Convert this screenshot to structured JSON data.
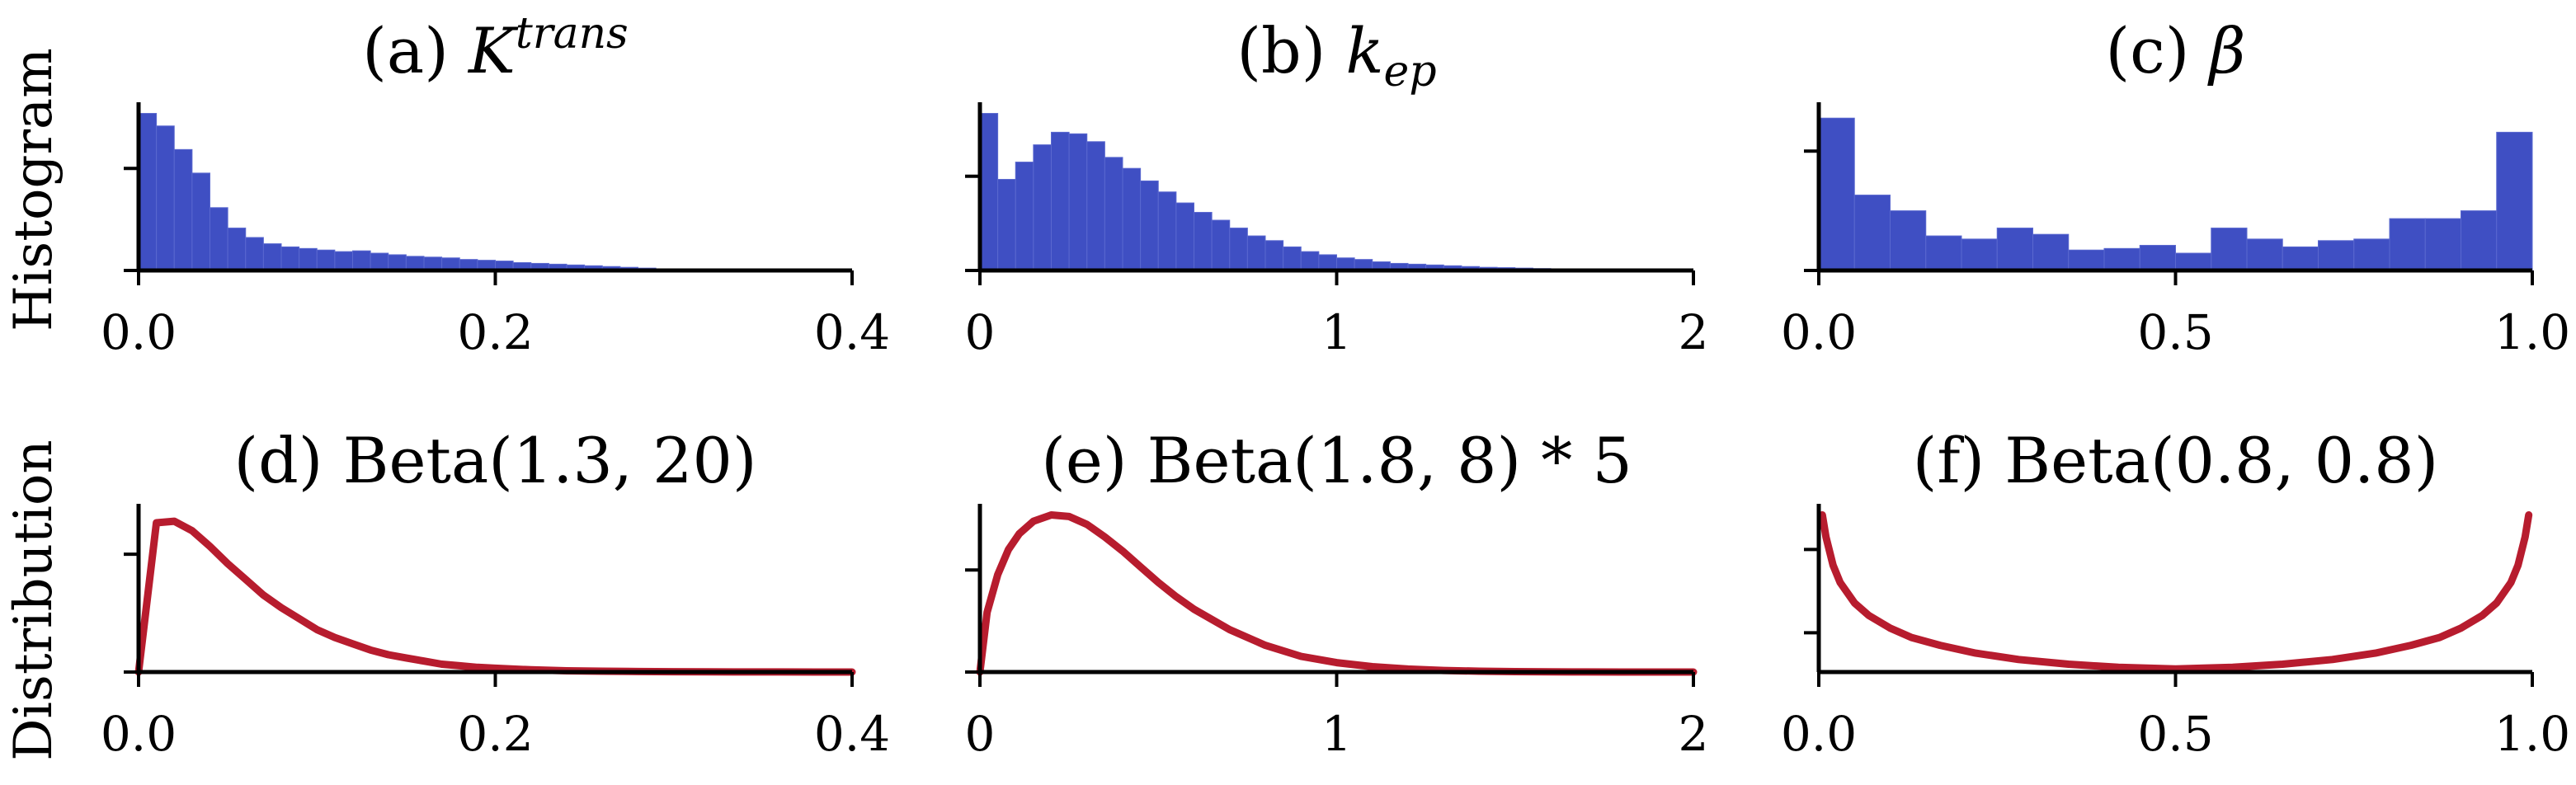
{
  "figure": {
    "row_labels": [
      "Histogram",
      "Distribution"
    ],
    "colors": {
      "histogram": "#3f4fc3",
      "distribution": "#b71c2e",
      "axis": "#000000"
    }
  },
  "chart_data": [
    {
      "type": "bar",
      "panel": "a",
      "title_prefix": "(a) ",
      "title_main": "K",
      "title_sup": "trans",
      "title_sub": "",
      "xlim": [
        0.0,
        0.4
      ],
      "xticks": [
        "0.0",
        "0.2",
        "0.4"
      ],
      "xtick_values": [
        0.0,
        0.2,
        0.4
      ],
      "bin_width": 0.01,
      "bins_start": [
        0.0,
        0.01,
        0.02,
        0.03,
        0.04,
        0.05,
        0.06,
        0.07,
        0.08,
        0.09,
        0.1,
        0.11,
        0.12,
        0.13,
        0.14,
        0.15,
        0.16,
        0.17,
        0.18,
        0.19,
        0.2,
        0.21,
        0.22,
        0.23,
        0.24,
        0.25,
        0.26,
        0.27,
        0.28,
        0.29
      ],
      "values": [
        1.0,
        0.92,
        0.77,
        0.62,
        0.4,
        0.27,
        0.21,
        0.17,
        0.15,
        0.14,
        0.13,
        0.12,
        0.125,
        0.11,
        0.1,
        0.09,
        0.085,
        0.08,
        0.07,
        0.065,
        0.06,
        0.05,
        0.045,
        0.04,
        0.035,
        0.03,
        0.025,
        0.02,
        0.015,
        0.01
      ],
      "ylim": [
        0,
        1.05
      ],
      "ytick_values": [
        0.0,
        0.65
      ]
    },
    {
      "type": "bar",
      "panel": "b",
      "title_prefix": "(b) ",
      "title_main": "k",
      "title_sup": "",
      "title_sub": "ep",
      "xlim": [
        0,
        2
      ],
      "xticks": [
        "0",
        "1",
        "2"
      ],
      "xtick_values": [
        0,
        1,
        2
      ],
      "bin_width": 0.05,
      "bins_start": [
        0.0,
        0.05,
        0.1,
        0.15,
        0.2,
        0.25,
        0.3,
        0.35,
        0.4,
        0.45,
        0.5,
        0.55,
        0.6,
        0.65,
        0.7,
        0.75,
        0.8,
        0.85,
        0.9,
        0.95,
        1.0,
        1.05,
        1.1,
        1.15,
        1.2,
        1.25,
        1.3,
        1.35,
        1.4,
        1.45,
        1.5,
        1.55,
        1.6,
        1.65,
        1.7
      ],
      "values": [
        1.0,
        0.58,
        0.69,
        0.8,
        0.88,
        0.87,
        0.82,
        0.72,
        0.65,
        0.57,
        0.5,
        0.43,
        0.37,
        0.32,
        0.27,
        0.22,
        0.19,
        0.15,
        0.12,
        0.1,
        0.08,
        0.07,
        0.055,
        0.045,
        0.04,
        0.035,
        0.03,
        0.025,
        0.02,
        0.018,
        0.015,
        0.012,
        0.01,
        0.008,
        0.006
      ],
      "ylim": [
        0,
        1.05
      ],
      "ytick_values": [
        0.0,
        0.6
      ]
    },
    {
      "type": "bar",
      "panel": "c",
      "title_prefix": "(c) ",
      "title_main": "β",
      "title_sup": "",
      "title_sub": "",
      "xlim": [
        0.0,
        1.0
      ],
      "xticks": [
        "0.0",
        "0.5",
        "1.0"
      ],
      "xtick_values": [
        0.0,
        0.5,
        1.0
      ],
      "bin_width": 0.05,
      "bins_start": [
        0.0,
        0.05,
        0.1,
        0.15,
        0.2,
        0.25,
        0.3,
        0.35,
        0.4,
        0.45,
        0.5,
        0.55,
        0.6,
        0.65,
        0.7,
        0.75,
        0.8,
        0.85,
        0.9,
        0.95
      ],
      "values": [
        0.97,
        0.48,
        0.38,
        0.22,
        0.2,
        0.27,
        0.23,
        0.13,
        0.14,
        0.16,
        0.11,
        0.27,
        0.2,
        0.15,
        0.19,
        0.2,
        0.33,
        0.33,
        0.38,
        0.88
      ],
      "ylim": [
        0,
        1.05
      ],
      "ytick_values": [
        0.0,
        0.76
      ]
    },
    {
      "type": "line",
      "panel": "d",
      "title_text": "(d) Beta(1.3, 20)",
      "xlim": [
        0.0,
        0.4
      ],
      "xticks": [
        "0.0",
        "0.2",
        "0.4"
      ],
      "xtick_values": [
        0.0,
        0.2,
        0.4
      ],
      "x": [
        0.0,
        0.01,
        0.02,
        0.03,
        0.04,
        0.05,
        0.06,
        0.07,
        0.08,
        0.09,
        0.1,
        0.11,
        0.12,
        0.13,
        0.14,
        0.15,
        0.16,
        0.17,
        0.18,
        0.19,
        0.2,
        0.22,
        0.24,
        0.26,
        0.28,
        0.3,
        0.32,
        0.34,
        0.36,
        0.38,
        0.4
      ],
      "y": [
        0.0,
        0.95,
        0.96,
        0.9,
        0.8,
        0.69,
        0.59,
        0.49,
        0.41,
        0.34,
        0.27,
        0.22,
        0.18,
        0.14,
        0.11,
        0.09,
        0.07,
        0.05,
        0.04,
        0.03,
        0.024,
        0.014,
        0.008,
        0.005,
        0.003,
        0.002,
        0.001,
        0.0005,
        0.0003,
        0.0002,
        0.0001
      ],
      "ylim": [
        0,
        1.05
      ],
      "ytick_values": [
        0.0,
        0.75
      ]
    },
    {
      "type": "line",
      "panel": "e",
      "title_text": "(e) Beta(1.8, 8) * 5",
      "xlim": [
        0,
        2
      ],
      "xticks": [
        "0",
        "1",
        "2"
      ],
      "xtick_values": [
        0,
        1,
        2
      ],
      "x": [
        0.0,
        0.02,
        0.05,
        0.08,
        0.11,
        0.15,
        0.2,
        0.25,
        0.3,
        0.35,
        0.4,
        0.45,
        0.5,
        0.55,
        0.6,
        0.7,
        0.8,
        0.9,
        1.0,
        1.1,
        1.2,
        1.3,
        1.4,
        1.5,
        1.6,
        1.7,
        1.8,
        1.9,
        2.0
      ],
      "y": [
        0.0,
        0.38,
        0.62,
        0.78,
        0.88,
        0.96,
        1.0,
        0.99,
        0.94,
        0.86,
        0.77,
        0.67,
        0.57,
        0.48,
        0.4,
        0.27,
        0.17,
        0.1,
        0.06,
        0.034,
        0.019,
        0.01,
        0.005,
        0.0025,
        0.0012,
        0.0005,
        0.0002,
        0.0001,
        0.0
      ],
      "ylim": [
        0,
        1.05
      ],
      "ytick_values": [
        0.0,
        0.65
      ]
    },
    {
      "type": "line",
      "panel": "f",
      "title_text": "(f) Beta(0.8, 0.8)",
      "xlim": [
        0.0,
        1.0
      ],
      "xticks": [
        "0.0",
        "0.5",
        "1.0"
      ],
      "xtick_values": [
        0.0,
        0.5,
        1.0
      ],
      "x": [
        0.005,
        0.01,
        0.02,
        0.03,
        0.05,
        0.07,
        0.1,
        0.13,
        0.17,
        0.22,
        0.28,
        0.35,
        0.42,
        0.5,
        0.58,
        0.65,
        0.72,
        0.78,
        0.83,
        0.87,
        0.9,
        0.93,
        0.95,
        0.97,
        0.98,
        0.99,
        0.995
      ],
      "y": [
        1.0,
        0.86,
        0.68,
        0.57,
        0.44,
        0.36,
        0.28,
        0.22,
        0.17,
        0.12,
        0.08,
        0.05,
        0.03,
        0.02,
        0.03,
        0.05,
        0.08,
        0.12,
        0.17,
        0.22,
        0.28,
        0.36,
        0.44,
        0.57,
        0.68,
        0.86,
        1.0
      ],
      "ylim": [
        0,
        1.05
      ],
      "ytick_values": [
        0.25,
        0.78
      ]
    }
  ]
}
